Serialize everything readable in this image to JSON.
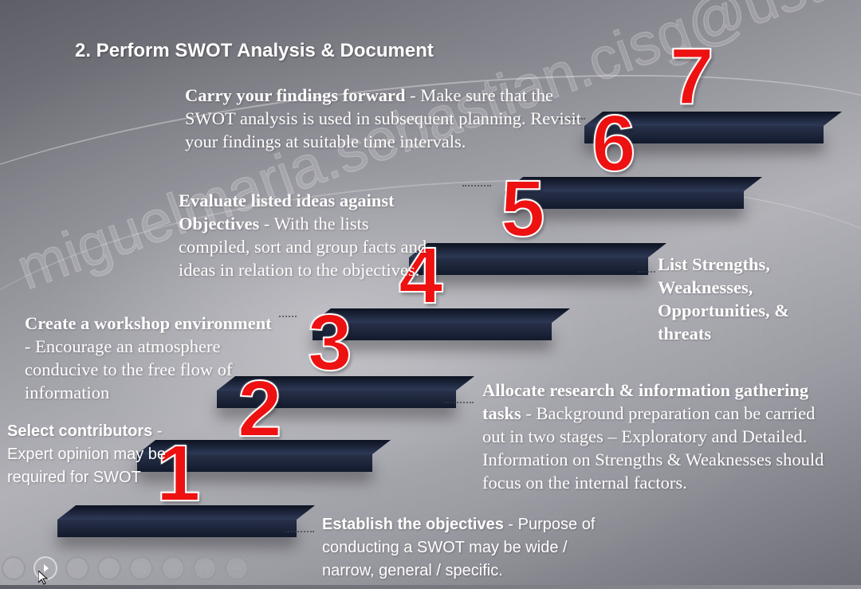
{
  "slide": {
    "title": "2. Perform SWOT Analysis & Document",
    "watermark": "miguelmaria.sebastian.cisg@ust.edu.ph",
    "steps": [
      {
        "number": "1",
        "heading": "Select contributors",
        "sep": " - ",
        "body": "Expert opinion may be required for SWOT"
      },
      {
        "number": "2",
        "heading": "Create a workshop environment",
        "sep": " - ",
        "body": "Encourage an atmosphere conducive to the free flow of information"
      },
      {
        "number": "3",
        "heading": "Evaluate listed ideas against Objectives",
        "sep": " - ",
        "body": "With the lists compiled, sort and group facts and ideas in relation to the objectives."
      },
      {
        "number": "4",
        "heading": "Establish the objectives",
        "sep": " - ",
        "body": "Purpose of conducting a SWOT may be wide / narrow, general / specific."
      },
      {
        "number": "5",
        "heading": "Allocate research & information gathering tasks",
        "sep": " - ",
        "body": "Background preparation can be carried out in two stages – Exploratory and Detailed. Information on Strengths & Weaknesses should focus on the internal factors."
      },
      {
        "number": "6",
        "heading": "List Strengths, Weaknesses, Opportunities, & threats",
        "sep": "",
        "body": ""
      },
      {
        "number": "7",
        "heading": "Carry your findings forward",
        "sep": " - ",
        "body": "Make sure that the SWOT analysis is used in subsequent planning. Revisit your findings at suitable time intervals."
      }
    ]
  },
  "controls": {
    "icons": [
      "previous-icon",
      "next-icon",
      "pen-icon",
      "slides-grid-icon",
      "zoom-icon",
      "subtitles-icon",
      "camera-off-icon",
      "more-options-icon"
    ]
  }
}
